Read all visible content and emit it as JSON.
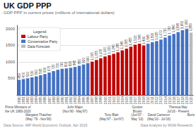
{
  "chart_data": {
    "type": "bar",
    "title": "UK GDP PPP",
    "subtitle": "GDP PPP in current prices (millions of international dollars)",
    "categories": [
      "1980",
      "1981",
      "1982",
      "1983",
      "1984",
      "1985",
      "1986",
      "1987",
      "1988",
      "1989",
      "1990",
      "1991",
      "1992",
      "1993",
      "1994",
      "1995",
      "1996",
      "1997",
      "1998",
      "1999",
      "2000",
      "2001",
      "2002",
      "2003",
      "2004",
      "2005",
      "2006",
      "2007",
      "2008",
      "2009",
      "2010",
      "2011",
      "2012",
      "2013",
      "2014",
      "2015",
      "2016",
      "2017",
      "2018",
      "2019",
      "2020"
    ],
    "values": [
      456,
      476,
      500,
      530,
      560,
      595,
      630,
      675,
      720,
      760,
      790,
      800,
      820,
      845,
      880,
      920,
      960,
      1005,
      1055,
      1105,
      1160,
      1200,
      1240,
      1285,
      1345,
      1395,
      1455,
      1515,
      1545,
      1490,
      1545,
      1590,
      1625,
      1670,
      1730,
      1790,
      1840,
      1895,
      1950,
      1990,
      1880
    ],
    "value_labels": [
      "456",
      "476",
      "500",
      "530",
      "560",
      "595",
      "630",
      "675",
      "720",
      "760",
      "790",
      "800",
      "820",
      "845",
      "880",
      "920",
      "960",
      "1,005",
      "1,055",
      "1,105",
      "1,160",
      "1,200",
      "1,240",
      "1,285",
      "1,345",
      "1,395",
      "1,455",
      "1,515",
      "1,545",
      "1,490",
      "1,545",
      "1,590",
      "1,625",
      "1,670",
      "1,730",
      "1,790",
      "1,840",
      "1,895",
      "1,950",
      "1,990",
      "1,880"
    ],
    "colors": [
      "#4472C4",
      "#4472C4",
      "#4472C4",
      "#4472C4",
      "#4472C4",
      "#4472C4",
      "#4472C4",
      "#4472C4",
      "#4472C4",
      "#4472C4",
      "#4472C4",
      "#4472C4",
      "#4472C4",
      "#4472C4",
      "#4472C4",
      "#4472C4",
      "#4472C4",
      "#C00000",
      "#C00000",
      "#C00000",
      "#C00000",
      "#C00000",
      "#C00000",
      "#C00000",
      "#C00000",
      "#C00000",
      "#C00000",
      "#C00000",
      "#C00000",
      "#C00000",
      "#4472C4",
      "#4472C4",
      "#4472C4",
      "#4472C4",
      "#4472C4",
      "#4472C4",
      "#4472C4",
      "#4472C4",
      "#4472C4",
      "#4472C4",
      "#BBBBBB"
    ],
    "data_labels": true,
    "ylim": [
      0,
      2100
    ],
    "yticks": [
      500,
      1000,
      1500,
      2000
    ],
    "grid": true,
    "legend": "upper left",
    "legend_title": "Legend",
    "legend_entries": [
      {
        "name": "Labour Party",
        "color": "#C00000"
      },
      {
        "name": "Conservative Party",
        "color": "#4472C4"
      },
      {
        "name": "Data Forecast",
        "color": "#BBBBBB"
      }
    ],
    "annotations": [
      {
        "text": "Prime Ministers of\nthe UK 1980-2020",
        "x": -0.3
      },
      {
        "text": "Margaret Thatcher\n(May '79 - Nov'90)",
        "x": 4.5
      },
      {
        "text": "John Major\n(Nov'90 - May'97)",
        "x": 13.0
      },
      {
        "text": "Tony Blair\n(May'97 - Jun'07)",
        "x": 21.5
      },
      {
        "text": "Gordon\nBrown\n(Jun'07 -\nMay '10)",
        "x": 27.5
      },
      {
        "text": "David Cameron\n(May'10 - Jul'16)",
        "x": 32.5
      },
      {
        "text": "Theresa May\nJul'16 - Present",
        "x": 37.0
      },
      {
        "text": "Boris",
        "x": 40.0
      }
    ],
    "source_left": "Data Source: IMF World Economic Outlook, Apr 2019",
    "source_right": "Data Analysis by MGM Research"
  }
}
